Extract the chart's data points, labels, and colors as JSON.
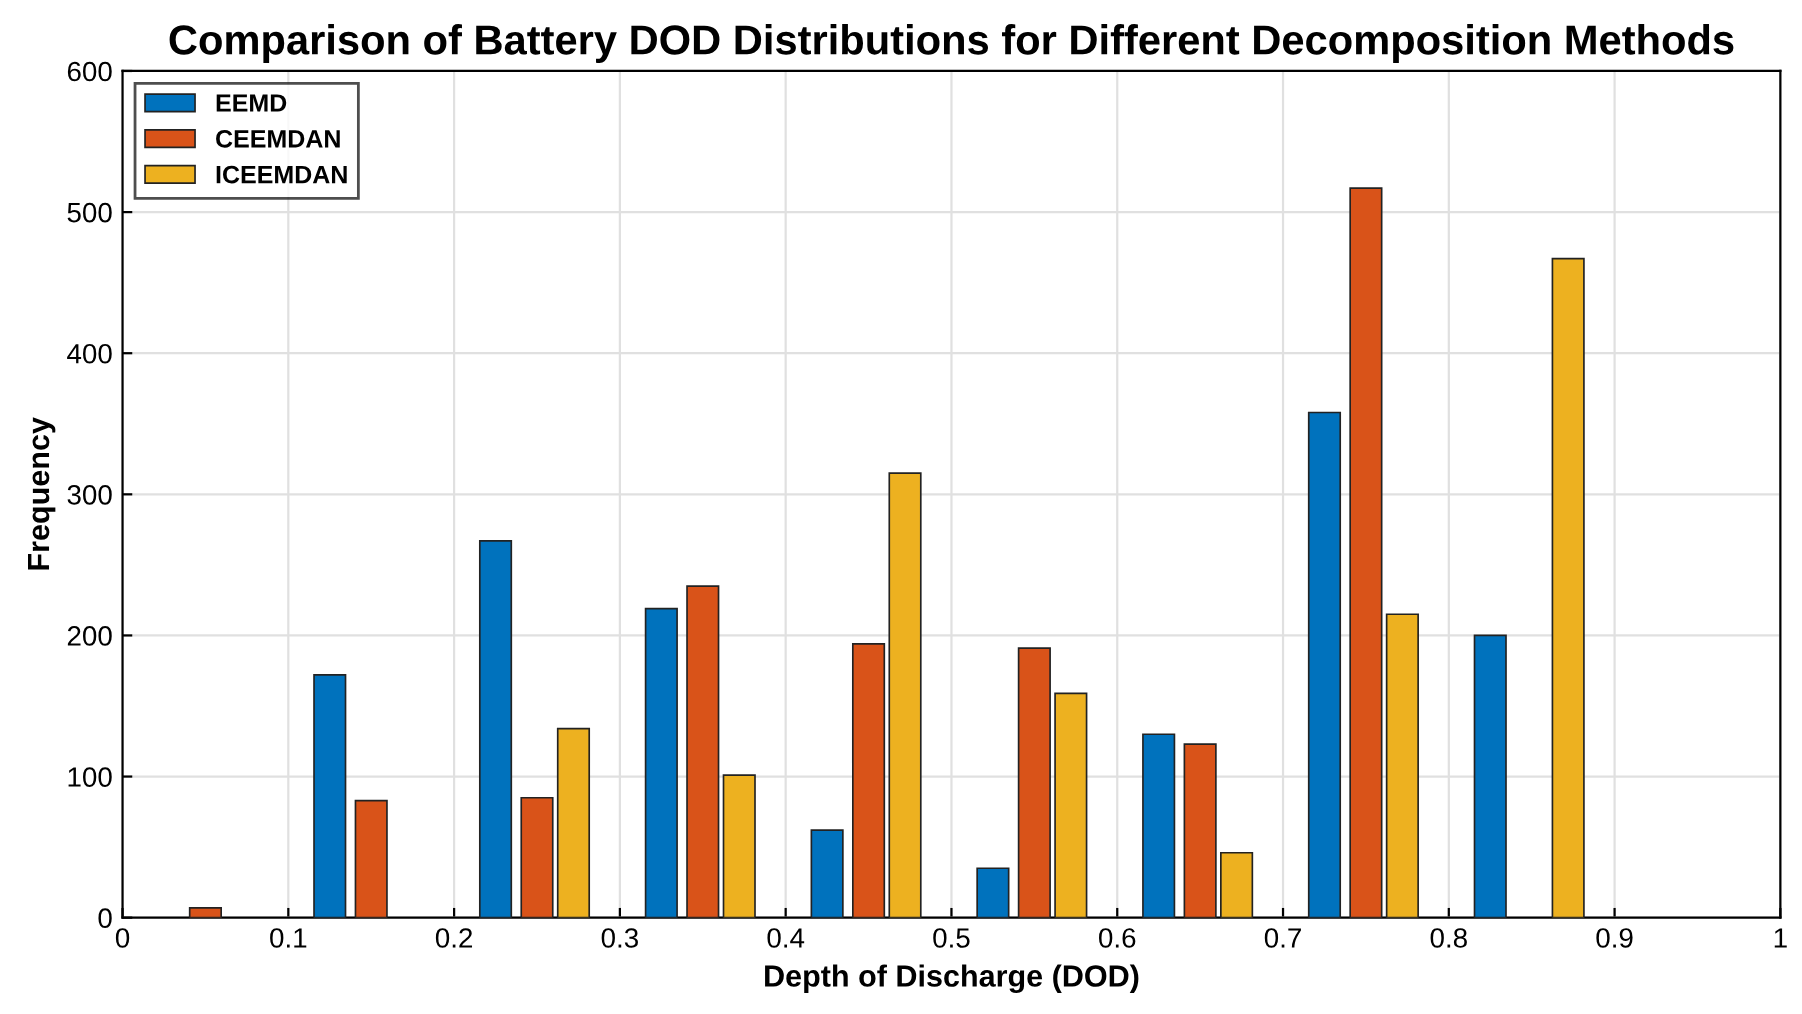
{
  "chart_data": {
    "type": "bar",
    "title": "Comparison of Battery DOD Distributions for Different Decomposition Methods",
    "xlabel": "Depth of Discharge (DOD)",
    "ylabel": "Frequency",
    "series": [
      {
        "name": "EEMD",
        "color": "#0072bd",
        "x": [
          0.125,
          0.225,
          0.325,
          0.425,
          0.525,
          0.625,
          0.725,
          0.825
        ],
        "values": [
          172,
          267,
          219,
          62,
          35,
          130,
          358,
          200
        ]
      },
      {
        "name": "CEEMDAN",
        "color": "#d95319",
        "x": [
          0.05,
          0.15,
          0.25,
          0.35,
          0.45,
          0.55,
          0.65,
          0.75
        ],
        "values": [
          7,
          83,
          85,
          235,
          194,
          191,
          123,
          517
        ]
      },
      {
        "name": "ICEEMDAN",
        "color": "#edb120",
        "x": [
          0.272,
          0.372,
          0.472,
          0.572,
          0.672,
          0.772,
          0.872
        ],
        "values": [
          134,
          101,
          315,
          159,
          46,
          215,
          467
        ]
      }
    ],
    "xlim": [
      0,
      1
    ],
    "xticks": [
      0,
      0.1,
      0.2,
      0.3,
      0.4,
      0.5,
      0.6,
      0.7,
      0.8,
      0.9,
      1
    ],
    "ylim": [
      0,
      600
    ],
    "yticks": [
      0,
      100,
      200,
      300,
      400,
      500,
      600
    ],
    "grid": true,
    "legend": "top left"
  }
}
